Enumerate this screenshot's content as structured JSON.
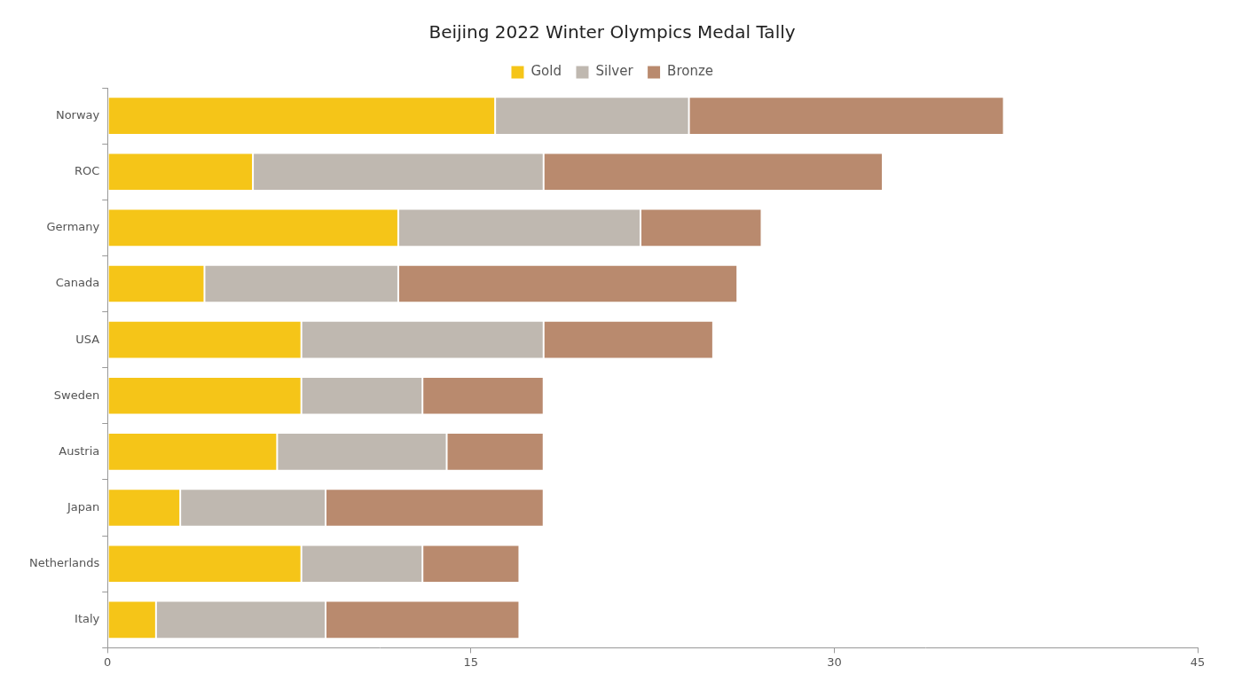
{
  "chart_data": {
    "type": "bar",
    "title": "Beijing 2022 Winter Olympics Medal Tally",
    "orientation": "horizontal",
    "stacked": true,
    "grid": false,
    "legend": "top",
    "categories": [
      "Norway",
      "ROC",
      "Germany",
      "Canada",
      "USA",
      "Sweden",
      "Austria",
      "Japan",
      "Netherlands",
      "Italy"
    ],
    "series": [
      {
        "name": "Gold",
        "color": "#f5c518",
        "values": [
          16,
          6,
          12,
          4,
          8,
          8,
          7,
          3,
          8,
          2
        ]
      },
      {
        "name": "Silver",
        "color": "#bfb8b0",
        "values": [
          8,
          12,
          10,
          8,
          10,
          5,
          7,
          6,
          5,
          7
        ]
      },
      {
        "name": "Bronze",
        "color": "#b98a6e",
        "values": [
          13,
          14,
          5,
          14,
          7,
          5,
          4,
          9,
          4,
          8
        ]
      }
    ],
    "xlim": [
      0,
      45
    ],
    "xticks": [
      0,
      15,
      30,
      45
    ]
  }
}
